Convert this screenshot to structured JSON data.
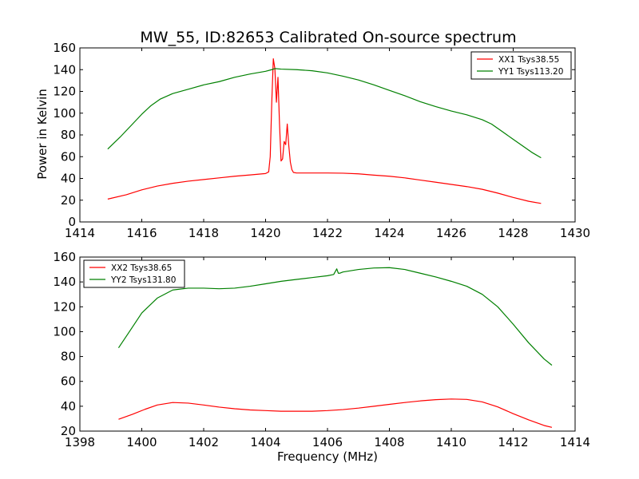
{
  "chart_data": [
    {
      "type": "line",
      "title": "MW_55, ID:82653 Calibrated On-source spectrum",
      "xlabel": "",
      "ylabel": "Power in Kelvin",
      "xlim": [
        1414,
        1430
      ],
      "ylim": [
        0,
        160
      ],
      "xticks": [
        "1414",
        "1416",
        "1418",
        "1420",
        "1422",
        "1424",
        "1426",
        "1428",
        "1430"
      ],
      "yticks": [
        "0",
        "20",
        "40",
        "60",
        "80",
        "100",
        "120",
        "140",
        "160"
      ],
      "grid": false,
      "legend": "top-right",
      "series": [
        {
          "name": "XX1 Tsys38.55",
          "color": "#ff0000",
          "x": [
            1414.9,
            1415.5,
            1416.0,
            1416.5,
            1417.0,
            1417.5,
            1418.0,
            1418.5,
            1419.0,
            1419.5,
            1420.0,
            1420.1,
            1420.15,
            1420.2,
            1420.25,
            1420.3,
            1420.35,
            1420.4,
            1420.45,
            1420.5,
            1420.55,
            1420.6,
            1420.65,
            1420.7,
            1420.75,
            1420.8,
            1420.85,
            1420.9,
            1421.0,
            1421.5,
            1422.0,
            1422.5,
            1423.0,
            1423.5,
            1424.0,
            1424.5,
            1425.0,
            1425.5,
            1426.0,
            1426.5,
            1427.0,
            1427.5,
            1428.0,
            1428.5,
            1428.9
          ],
          "values": [
            21,
            25,
            29.5,
            33,
            35.5,
            37.5,
            39,
            40.5,
            42,
            43.2,
            44.5,
            46,
            60,
            110,
            150,
            141,
            110,
            133,
            90,
            56,
            58,
            74,
            71,
            90,
            70,
            55,
            48,
            45.5,
            45,
            45,
            45,
            44.8,
            44.2,
            43,
            42,
            40.5,
            38.5,
            36.5,
            34.5,
            32.5,
            30,
            26.5,
            22.5,
            19,
            17
          ]
        },
        {
          "name": "YY1 Tsys113.20",
          "color": "#008000",
          "x": [
            1414.9,
            1415.3,
            1415.7,
            1416.0,
            1416.3,
            1416.6,
            1417.0,
            1417.5,
            1418.0,
            1418.5,
            1419.0,
            1419.5,
            1420.0,
            1420.2,
            1420.3,
            1420.5,
            1421.0,
            1421.5,
            1422.0,
            1422.5,
            1423.0,
            1423.5,
            1424.0,
            1424.5,
            1425.0,
            1425.5,
            1426.0,
            1426.5,
            1427.0,
            1427.3,
            1427.6,
            1428.0,
            1428.3,
            1428.6,
            1428.9
          ],
          "values": [
            67,
            78,
            90,
            99,
            107,
            113,
            118,
            122,
            126,
            129,
            133,
            136,
            138.5,
            140,
            141,
            140.5,
            140,
            139,
            137,
            134,
            130.5,
            126,
            121,
            116,
            110.5,
            106,
            102,
            98.5,
            94,
            90,
            84,
            76,
            70,
            64,
            59
          ]
        }
      ]
    },
    {
      "type": "line",
      "title": "",
      "xlabel": "Frequency (MHz)",
      "ylabel": "",
      "xlim": [
        1398,
        1414
      ],
      "ylim": [
        20,
        160
      ],
      "xticks": [
        "1398",
        "1400",
        "1402",
        "1404",
        "1406",
        "1408",
        "1410",
        "1412",
        "1414"
      ],
      "yticks": [
        "20",
        "40",
        "60",
        "80",
        "100",
        "120",
        "140",
        "160"
      ],
      "grid": false,
      "legend": "top-left",
      "series": [
        {
          "name": "XX2 Tsys38.65",
          "color": "#ff0000",
          "x": [
            1399.25,
            1399.7,
            1400.1,
            1400.5,
            1401.0,
            1401.5,
            1402.0,
            1402.5,
            1403.0,
            1403.5,
            1404.0,
            1404.5,
            1405.0,
            1405.5,
            1406.0,
            1406.5,
            1407.0,
            1407.5,
            1408.0,
            1408.5,
            1409.0,
            1409.5,
            1410.0,
            1410.5,
            1411.0,
            1411.5,
            1412.0,
            1412.5,
            1413.0,
            1413.25
          ],
          "values": [
            29.5,
            33.5,
            37.5,
            41,
            43,
            42.5,
            41,
            39.3,
            38,
            37,
            36.5,
            36,
            36,
            36,
            36.5,
            37.3,
            38.5,
            40,
            41.5,
            43,
            44.3,
            45.3,
            45.8,
            45.5,
            43.5,
            39.5,
            34,
            29,
            24.5,
            23
          ]
        },
        {
          "name": "YY2 Tsys131.80",
          "color": "#008000",
          "x": [
            1399.25,
            1399.6,
            1400.0,
            1400.5,
            1401.0,
            1401.5,
            1402.0,
            1402.5,
            1403.0,
            1403.5,
            1404.0,
            1404.5,
            1405.0,
            1405.5,
            1406.0,
            1406.2,
            1406.3,
            1406.35,
            1406.4,
            1406.5,
            1407.0,
            1407.5,
            1408.0,
            1408.5,
            1409.0,
            1409.5,
            1410.0,
            1410.5,
            1411.0,
            1411.5,
            1412.0,
            1412.5,
            1413.0,
            1413.25
          ],
          "values": [
            87,
            100,
            115,
            127,
            133.5,
            135,
            135,
            134.5,
            135,
            136.5,
            138.5,
            140.5,
            142,
            143.5,
            145,
            146,
            150.5,
            147,
            147,
            148,
            150,
            151.2,
            151.5,
            150,
            147,
            144,
            140.5,
            136.5,
            130,
            120,
            106,
            91,
            78,
            73
          ]
        }
      ]
    }
  ]
}
